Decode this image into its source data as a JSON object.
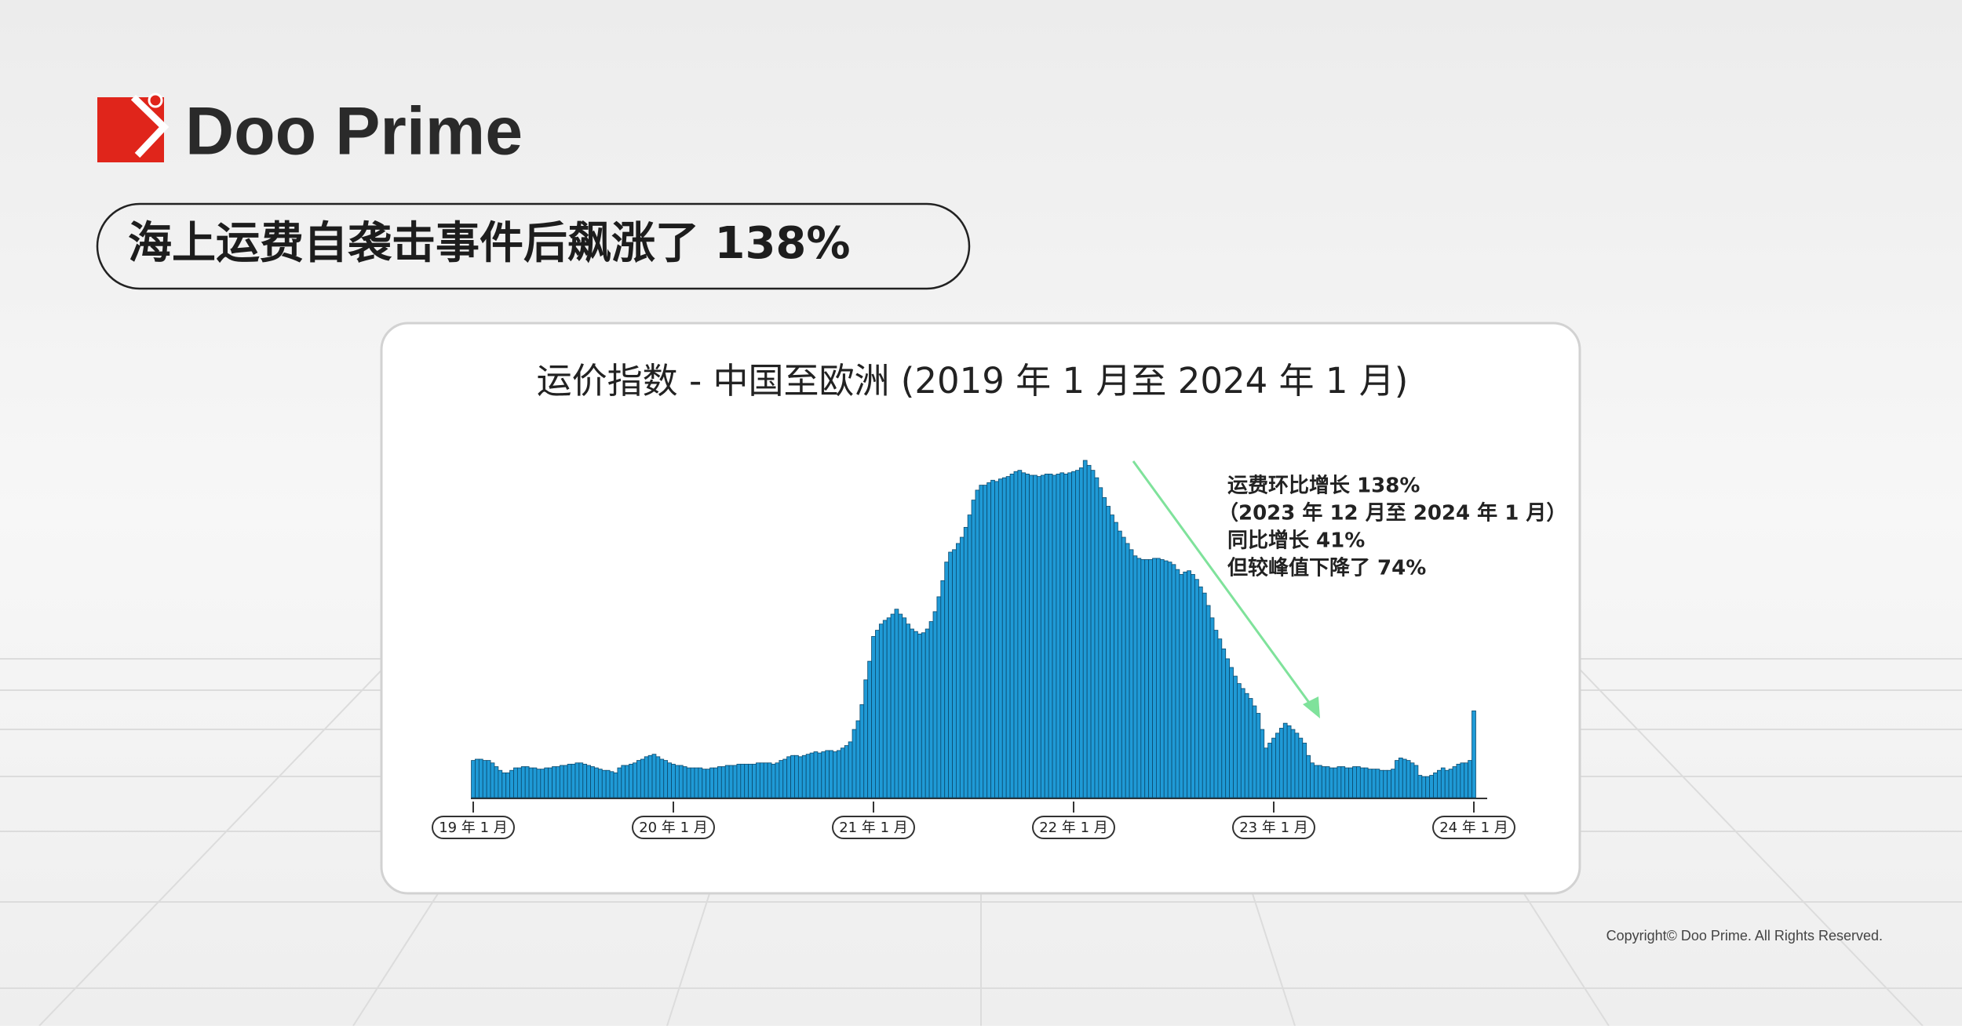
{
  "header": {
    "brand": "Doo Prime",
    "headline": "海上运费自袭击事件后飙涨了 138%"
  },
  "chart_data": {
    "type": "bar",
    "title": "运价指数 - 中国至欧洲 (2019 年 1 月至 2024 年 1 月)",
    "color": "#1f9ad6",
    "annotation": [
      "运费环比增长 138%",
      "（2023 年 12 月至 2024 年 1 月）",
      "同比增长 41%",
      "但较峰值下降了 74%"
    ],
    "xticks": [
      {
        "value": 0,
        "label": "19 年 1 月"
      },
      {
        "value": 52,
        "label": "20 年 1 月"
      },
      {
        "value": 104,
        "label": "21 年 1 月"
      },
      {
        "value": 156,
        "label": "22 年 1 月"
      },
      {
        "value": 208,
        "label": "23 年 1 月"
      },
      {
        "value": 260,
        "label": "24 年 1 月"
      }
    ],
    "values": [
      30,
      31,
      31,
      30,
      30,
      28,
      25,
      22,
      20,
      20,
      22,
      24,
      24,
      25,
      25,
      24,
      24,
      23,
      23,
      24,
      24,
      25,
      25,
      26,
      26,
      27,
      27,
      28,
      28,
      27,
      26,
      25,
      24,
      23,
      22,
      22,
      21,
      20,
      24,
      26,
      26,
      27,
      28,
      30,
      31,
      33,
      34,
      35,
      33,
      31,
      30,
      28,
      27,
      26,
      26,
      25,
      24,
      24,
      24,
      24,
      23,
      23,
      24,
      24,
      25,
      25,
      26,
      26,
      26,
      27,
      27,
      27,
      27,
      27,
      28,
      28,
      28,
      28,
      27,
      28,
      30,
      31,
      33,
      34,
      34,
      33,
      34,
      35,
      36,
      37,
      36,
      37,
      38,
      38,
      37,
      38,
      40,
      42,
      45,
      55,
      62,
      75,
      95,
      110,
      130,
      135,
      140,
      143,
      145,
      148,
      152,
      148,
      145,
      140,
      136,
      134,
      132,
      133,
      136,
      142,
      150,
      162,
      175,
      190,
      198,
      200,
      205,
      210,
      218,
      228,
      240,
      248,
      252,
      252,
      254,
      256,
      255,
      257,
      258,
      259,
      261,
      263,
      264,
      262,
      261,
      260,
      260,
      259,
      260,
      261,
      261,
      260,
      261,
      262,
      261,
      262,
      263,
      264,
      266,
      272,
      268,
      264,
      258,
      250,
      242,
      235,
      228,
      222,
      215,
      210,
      205,
      200,
      195,
      193,
      192,
      192,
      192,
      193,
      193,
      192,
      191,
      190,
      188,
      184,
      180,
      182,
      183,
      180,
      176,
      170,
      165,
      155,
      145,
      135,
      128,
      120,
      112,
      105,
      98,
      92,
      88,
      84,
      80,
      74,
      68,
      55,
      40,
      44,
      48,
      52,
      56,
      60,
      58,
      55,
      52,
      48,
      44,
      34,
      28,
      26,
      26,
      25,
      25,
      24,
      24,
      25,
      25,
      24,
      24,
      25,
      25,
      24,
      24,
      23,
      23,
      23,
      22,
      22,
      22,
      23,
      30,
      32,
      31,
      30,
      28,
      26,
      18,
      17,
      17,
      18,
      20,
      22,
      24,
      22,
      23,
      25,
      27,
      28,
      28,
      30,
      70
    ]
  },
  "footer": {
    "copyright": "Copyright© Doo Prime. All Rights Reserved."
  }
}
